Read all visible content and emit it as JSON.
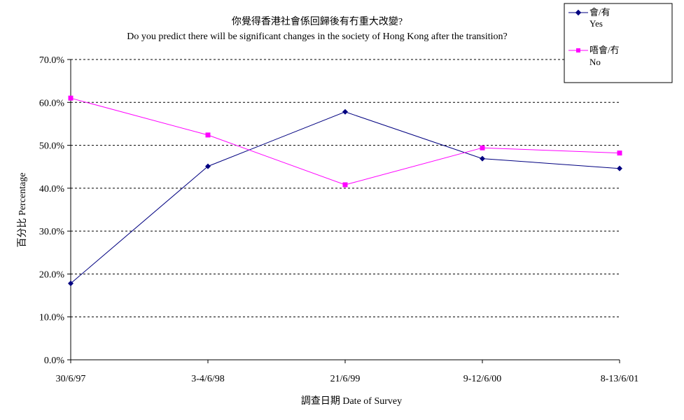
{
  "chart_data": {
    "type": "line",
    "title": "你覺得香港社會係回歸後有冇重大改變?",
    "subtitle": "Do you predict there will be significant changes in the society of Hong Kong after the transition?",
    "xlabel": "調查日期 Date of Survey",
    "ylabel": "百分比 Percentage",
    "categories": [
      "30/6/97",
      "3-4/6/98",
      "21/6/99",
      "9-12/6/00",
      "8-13/6/01"
    ],
    "ylim": [
      0,
      70
    ],
    "yticks": [
      0,
      10,
      20,
      30,
      40,
      50,
      60,
      70
    ],
    "ytick_labels": [
      "0.0%",
      "10.0%",
      "20.0%",
      "30.0%",
      "40.0%",
      "50.0%",
      "60.0%",
      "70.0%"
    ],
    "grid": true,
    "legend_position": "top-right",
    "series": [
      {
        "name": "會/有",
        "name_en": "Yes",
        "color": "#000080",
        "marker": "diamond",
        "values": [
          17.8,
          45.1,
          57.8,
          46.9,
          44.6
        ]
      },
      {
        "name": "唔會/冇",
        "name_en": "No",
        "color": "#ff00ff",
        "marker": "square",
        "values": [
          61.0,
          52.4,
          40.8,
          49.4,
          48.2
        ]
      }
    ]
  }
}
